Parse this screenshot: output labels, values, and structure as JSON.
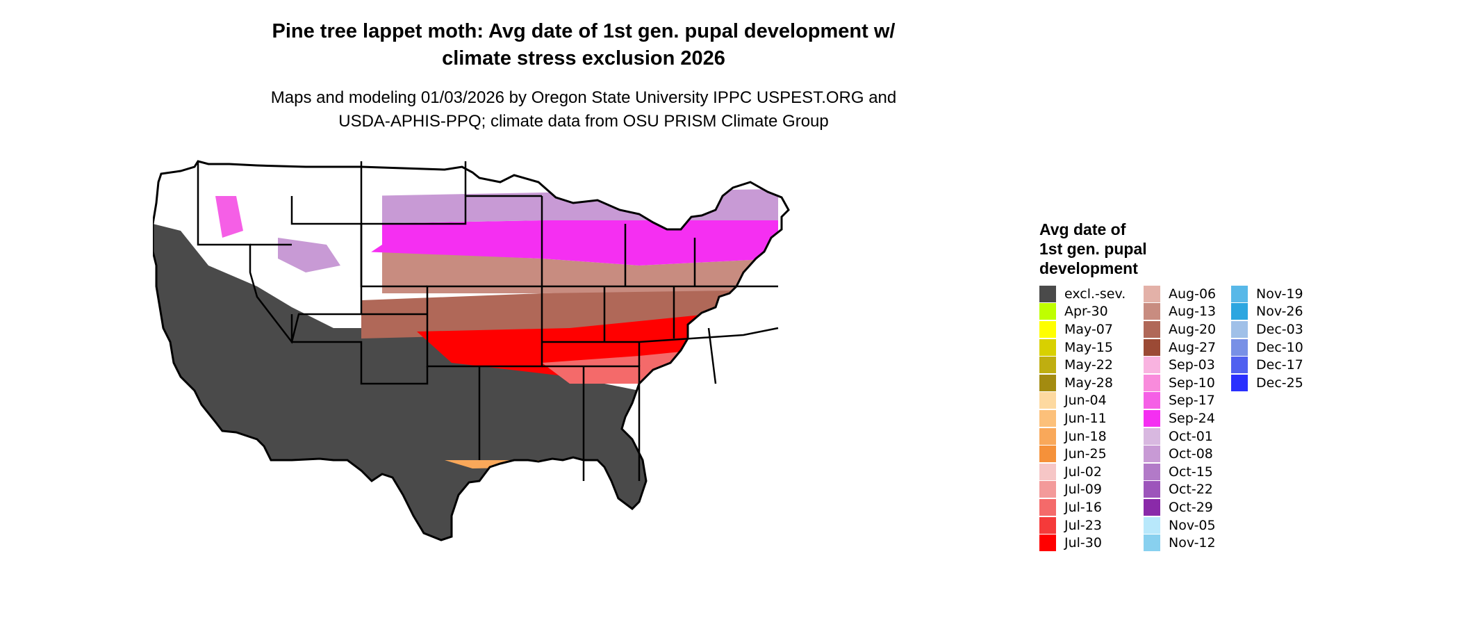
{
  "title_line1": "Pine tree lappet moth: Avg date of 1st gen. pupal development w/",
  "title_line2": "climate stress exclusion 2026",
  "subtitle_line1": "Maps and modeling 01/03/2026 by Oregon State University IPPC USPEST.ORG and",
  "subtitle_line2": "USDA-APHIS-PPQ; climate data from OSU PRISM Climate Group",
  "legend": {
    "title_line1": "Avg date of",
    "title_line2": "1st gen. pupal",
    "title_line3": "development",
    "columns": [
      [
        {
          "label": "excl.-sev.",
          "color": "#4a4a4a"
        },
        {
          "label": "Apr-30",
          "color": "#bfff00"
        },
        {
          "label": "May-07",
          "color": "#ffff00"
        },
        {
          "label": "May-15",
          "color": "#d8d000"
        },
        {
          "label": "May-22",
          "color": "#bfae10"
        },
        {
          "label": "May-28",
          "color": "#a38b10"
        },
        {
          "label": "Jun-04",
          "color": "#fdd9a0"
        },
        {
          "label": "Jun-11",
          "color": "#fcc07a"
        },
        {
          "label": "Jun-18",
          "color": "#f9a85a"
        },
        {
          "label": "Jun-25",
          "color": "#f5913a"
        },
        {
          "label": "Jul-02",
          "color": "#f6c6c6"
        },
        {
          "label": "Jul-09",
          "color": "#f39a9a"
        },
        {
          "label": "Jul-16",
          "color": "#f46a6a"
        },
        {
          "label": "Jul-23",
          "color": "#f53a3a"
        },
        {
          "label": "Jul-30",
          "color": "#ff0000"
        }
      ],
      [
        {
          "label": "Aug-06",
          "color": "#e3b1a8"
        },
        {
          "label": "Aug-13",
          "color": "#c88c80"
        },
        {
          "label": "Aug-20",
          "color": "#b06858"
        },
        {
          "label": "Aug-27",
          "color": "#9b4a35"
        },
        {
          "label": "Sep-03",
          "color": "#f9b3e0"
        },
        {
          "label": "Sep-10",
          "color": "#f98bdc"
        },
        {
          "label": "Sep-17",
          "color": "#f55fe6"
        },
        {
          "label": "Sep-24",
          "color": "#f52ff2"
        },
        {
          "label": "Oct-01",
          "color": "#d8b8e0"
        },
        {
          "label": "Oct-08",
          "color": "#c89ad5"
        },
        {
          "label": "Oct-15",
          "color": "#b27ac8"
        },
        {
          "label": "Oct-22",
          "color": "#9d55bb"
        },
        {
          "label": "Oct-29",
          "color": "#8a2aa9"
        },
        {
          "label": "Nov-05",
          "color": "#b8e8fb"
        },
        {
          "label": "Nov-12",
          "color": "#88d0ef"
        }
      ],
      [
        {
          "label": "Nov-19",
          "color": "#58b8e8"
        },
        {
          "label": "Nov-26",
          "color": "#2ca6e0"
        },
        {
          "label": "Dec-03",
          "color": "#a0c0e8"
        },
        {
          "label": "Dec-10",
          "color": "#7890e6"
        },
        {
          "label": "Dec-17",
          "color": "#5060f0"
        },
        {
          "label": "Dec-25",
          "color": "#2a30fe"
        }
      ]
    ]
  }
}
